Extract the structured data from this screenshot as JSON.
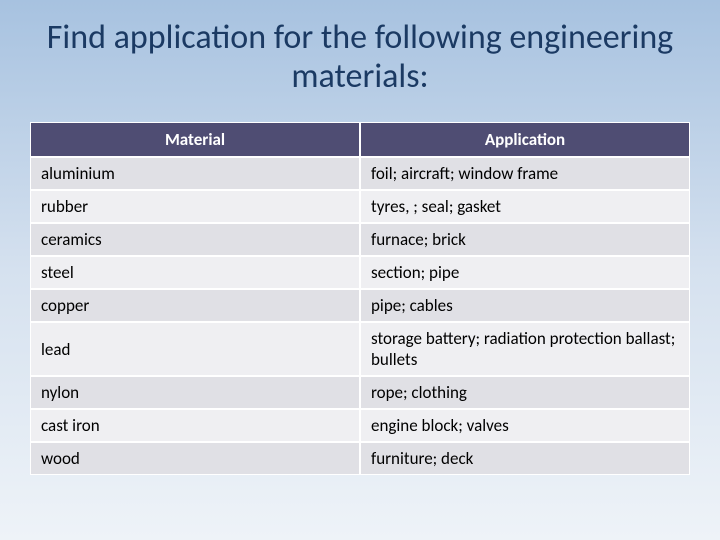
{
  "title": "Find application for the following engineering materials:",
  "table": {
    "columns": [
      "Material",
      "Application"
    ],
    "header_bg": "#4f4d73",
    "header_fg": "#ffffff",
    "row_bg_odd": "#e0e0e5",
    "row_bg_even": "#efeff2",
    "border_color": "#ffffff",
    "font_size": 17,
    "col_widths": [
      "50%",
      "50%"
    ],
    "rows": [
      [
        "aluminium",
        "foil; aircraft; window frame"
      ],
      [
        "rubber",
        "tyres, ; seal; gasket"
      ],
      [
        "ceramics",
        "furnace; brick"
      ],
      [
        "steel",
        "section; pipe"
      ],
      [
        "copper",
        "pipe; cables"
      ],
      [
        "lead",
        "storage battery; radiation protection ballast; bullets"
      ],
      [
        "nylon",
        "rope; clothing"
      ],
      [
        "cast iron",
        "engine block; valves"
      ],
      [
        "wood",
        "furniture; deck"
      ]
    ]
  },
  "slide_bg_gradient": [
    "#a7c2e0",
    "#d5e1ef",
    "#eef3f8"
  ],
  "title_color": "#1b3a63",
  "title_fontsize": 34
}
